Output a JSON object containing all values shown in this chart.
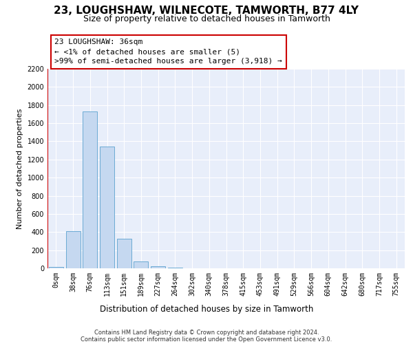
{
  "title": "23, LOUGHSHAW, WILNECOTE, TAMWORTH, B77 4LY",
  "subtitle": "Size of property relative to detached houses in Tamworth",
  "xlabel": "Distribution of detached houses by size in Tamworth",
  "ylabel": "Number of detached properties",
  "bar_color": "#c5d8f0",
  "bar_edge_color": "#6aaad4",
  "categories": [
    "0sqm",
    "38sqm",
    "76sqm",
    "113sqm",
    "151sqm",
    "189sqm",
    "227sqm",
    "264sqm",
    "302sqm",
    "340sqm",
    "378sqm",
    "415sqm",
    "453sqm",
    "491sqm",
    "529sqm",
    "566sqm",
    "604sqm",
    "642sqm",
    "680sqm",
    "717sqm",
    "755sqm"
  ],
  "values": [
    15,
    410,
    1730,
    1340,
    330,
    75,
    25,
    5,
    0,
    0,
    0,
    0,
    0,
    0,
    0,
    0,
    0,
    0,
    0,
    0,
    0
  ],
  "ylim": [
    0,
    2200
  ],
  "yticks": [
    0,
    200,
    400,
    600,
    800,
    1000,
    1200,
    1400,
    1600,
    1800,
    2000,
    2200
  ],
  "vline_color": "#cc0000",
  "annotation_text": "23 LOUGHSHAW: 36sqm\n← <1% of detached houses are smaller (5)\n>99% of semi-detached houses are larger (3,918) →",
  "footer_line1": "Contains HM Land Registry data © Crown copyright and database right 2024.",
  "footer_line2": "Contains public sector information licensed under the Open Government Licence v3.0.",
  "bg_color": "#e8eefa",
  "grid_color": "#ffffff",
  "title_fontsize": 11,
  "subtitle_fontsize": 9,
  "tick_fontsize": 7,
  "ylabel_fontsize": 8,
  "xlabel_fontsize": 8.5,
  "footer_fontsize": 6,
  "ann_fontsize": 8
}
